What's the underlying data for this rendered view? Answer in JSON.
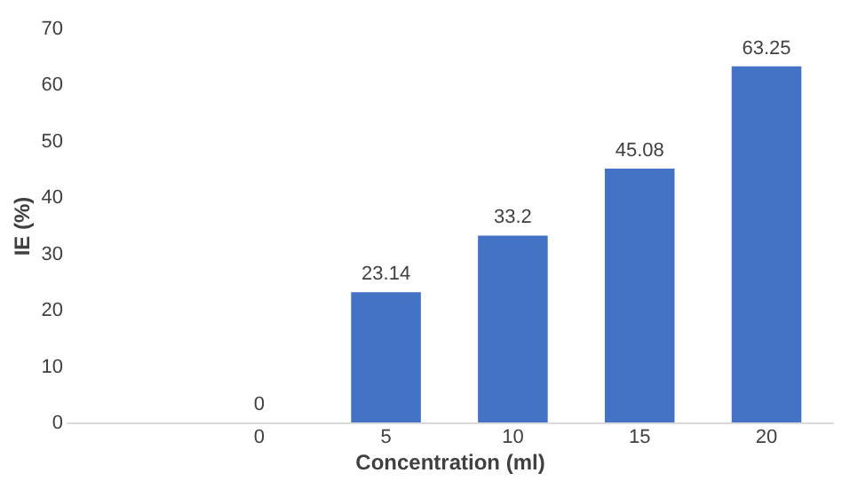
{
  "chart_data": {
    "type": "bar",
    "categories": [
      null,
      "0",
      "5",
      "10",
      "15",
      "20"
    ],
    "values": [
      null,
      0,
      23.14,
      33.2,
      45.08,
      63.25
    ],
    "color": "#4472c4",
    "data_labels": true,
    "xlabel": "Concentration (ml)",
    "ylabel": "IE (%)",
    "ylim": [
      0,
      70
    ],
    "yticks": [
      0,
      10,
      20,
      30,
      40,
      50,
      60,
      70
    ],
    "grid": false
  }
}
